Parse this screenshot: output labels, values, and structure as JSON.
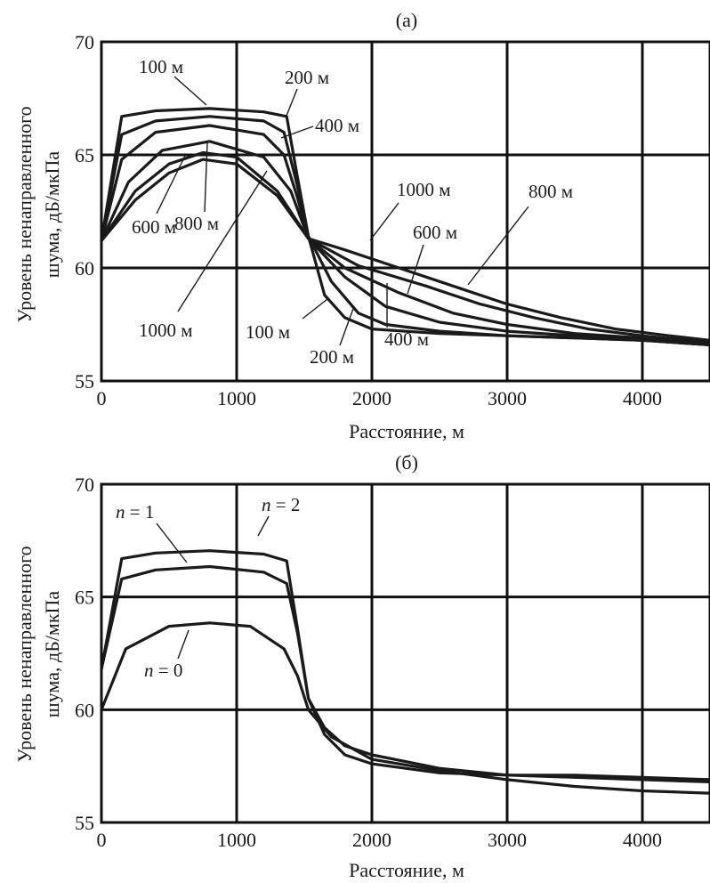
{
  "chart_data": [
    {
      "type": "line",
      "panel_label": "(а)",
      "xlabel": "Расстояние, м",
      "ylabel_lines": [
        "Уровень ненаправленного",
        "шума, дБ/мкПа"
      ],
      "xlim": [
        0,
        4500
      ],
      "ylim": [
        55,
        70
      ],
      "x_ticks": [
        "0",
        "1000",
        "2000",
        "3000",
        "4000"
      ],
      "y_ticks": [
        "55",
        "60",
        "65",
        "70"
      ],
      "grid": true,
      "series": [
        {
          "name": "100 м",
          "points": [
            [
              0,
              61.2
            ],
            [
              150,
              66.7
            ],
            [
              400,
              66.95
            ],
            [
              800,
              67.05
            ],
            [
              1200,
              66.9
            ],
            [
              1370,
              66.7
            ],
            [
              1450,
              64.0
            ],
            [
              1530,
              61.4
            ],
            [
              1650,
              58.8
            ],
            [
              1800,
              57.8
            ],
            [
              2000,
              57.3
            ],
            [
              2500,
              57.1
            ],
            [
              3000,
              57.0
            ],
            [
              3500,
              56.9
            ],
            [
              4000,
              56.8
            ],
            [
              4500,
              56.6
            ]
          ]
        },
        {
          "name": "200 м",
          "points": [
            [
              0,
              61.2
            ],
            [
              150,
              65.9
            ],
            [
              400,
              66.5
            ],
            [
              800,
              66.7
            ],
            [
              1200,
              66.5
            ],
            [
              1350,
              66.0
            ],
            [
              1450,
              63.6
            ],
            [
              1530,
              61.4
            ],
            [
              1700,
              59.4
            ],
            [
              1900,
              58.0
            ],
            [
              2100,
              57.5
            ],
            [
              2500,
              57.2
            ],
            [
              3000,
              57.0
            ],
            [
              3500,
              56.9
            ],
            [
              4000,
              56.8
            ],
            [
              4500,
              56.6
            ]
          ]
        },
        {
          "name": "400 м",
          "points": [
            [
              0,
              61.2
            ],
            [
              150,
              64.8
            ],
            [
              400,
              66.0
            ],
            [
              800,
              66.3
            ],
            [
              1200,
              65.9
            ],
            [
              1350,
              65.0
            ],
            [
              1450,
              63.1
            ],
            [
              1530,
              61.3
            ],
            [
              1800,
              59.6
            ],
            [
              2100,
              58.3
            ],
            [
              2500,
              57.6
            ],
            [
              3000,
              57.2
            ],
            [
              3500,
              57.0
            ],
            [
              4000,
              56.8
            ],
            [
              4500,
              56.6
            ]
          ]
        },
        {
          "name": "600 м",
          "points": [
            [
              0,
              61.2
            ],
            [
              200,
              63.8
            ],
            [
              450,
              65.2
            ],
            [
              800,
              65.6
            ],
            [
              1200,
              64.9
            ],
            [
              1400,
              63.4
            ],
            [
              1530,
              61.3
            ],
            [
              1800,
              60.0
            ],
            [
              2200,
              58.9
            ],
            [
              2600,
              58.0
            ],
            [
              3000,
              57.5
            ],
            [
              3500,
              57.1
            ],
            [
              4000,
              56.9
            ],
            [
              4500,
              56.6
            ]
          ]
        },
        {
          "name": "800 м",
          "points": [
            [
              0,
              61.2
            ],
            [
              250,
              63.4
            ],
            [
              500,
              64.6
            ],
            [
              750,
              65.1
            ],
            [
              1000,
              64.9
            ],
            [
              1300,
              63.4
            ],
            [
              1530,
              61.3
            ],
            [
              1900,
              60.1
            ],
            [
              2400,
              59.2
            ],
            [
              2800,
              58.4
            ],
            [
              3200,
              57.8
            ],
            [
              3600,
              57.3
            ],
            [
              4000,
              57.0
            ],
            [
              4500,
              56.7
            ]
          ]
        },
        {
          "name": "1000 м",
          "points": [
            [
              0,
              61.2
            ],
            [
              250,
              63.0
            ],
            [
              500,
              64.2
            ],
            [
              750,
              64.8
            ],
            [
              1000,
              64.6
            ],
            [
              1300,
              63.2
            ],
            [
              1530,
              61.3
            ],
            [
              1800,
              60.8
            ],
            [
              2200,
              60.0
            ],
            [
              2600,
              59.2
            ],
            [
              3000,
              58.4
            ],
            [
              3400,
              57.8
            ],
            [
              3800,
              57.3
            ],
            [
              4200,
              57.0
            ],
            [
              4500,
              56.8
            ]
          ]
        }
      ],
      "annotations": [
        {
          "text": "100 м"
        },
        {
          "text": "200 м"
        },
        {
          "text": "400 м"
        },
        {
          "text": "600 м"
        },
        {
          "text": "800 м"
        },
        {
          "text": "1000 м"
        },
        {
          "text": "1000 м"
        },
        {
          "text": "800 м"
        },
        {
          "text": "600 м"
        },
        {
          "text": "100 м"
        },
        {
          "text": "200 м"
        },
        {
          "text": "400 м"
        }
      ]
    },
    {
      "type": "line",
      "panel_label": "(б)",
      "xlabel": "Расстояние, м",
      "ylabel_lines": [
        "Уровень ненаправленного",
        "шума, дБ/мкПа"
      ],
      "xlim": [
        0,
        4500
      ],
      "ylim": [
        55,
        70
      ],
      "x_ticks": [
        "0",
        "1000",
        "2000",
        "3000",
        "4000"
      ],
      "y_ticks": [
        "55",
        "60",
        "65",
        "70"
      ],
      "grid": true,
      "series": [
        {
          "name": "n = 2",
          "points": [
            [
              0,
              61.8
            ],
            [
              150,
              66.7
            ],
            [
              400,
              66.95
            ],
            [
              800,
              67.05
            ],
            [
              1200,
              66.9
            ],
            [
              1370,
              66.6
            ],
            [
              1450,
              63.6
            ],
            [
              1530,
              60.5
            ],
            [
              1650,
              58.9
            ],
            [
              1800,
              58.0
            ],
            [
              2000,
              57.6
            ],
            [
              2500,
              57.2
            ],
            [
              3000,
              57.1
            ],
            [
              3500,
              57.0
            ],
            [
              4000,
              56.9
            ],
            [
              4500,
              56.8
            ]
          ]
        },
        {
          "name": "n = 1",
          "points": [
            [
              0,
              61.8
            ],
            [
              150,
              65.8
            ],
            [
              400,
              66.2
            ],
            [
              800,
              66.35
            ],
            [
              1200,
              66.1
            ],
            [
              1370,
              65.6
            ],
            [
              1450,
              63.4
            ],
            [
              1530,
              60.5
            ],
            [
              1650,
              59.2
            ],
            [
              1800,
              58.4
            ],
            [
              2000,
              58.0
            ],
            [
              2500,
              57.4
            ],
            [
              3000,
              57.1
            ],
            [
              3500,
              57.1
            ],
            [
              4000,
              57.0
            ],
            [
              4500,
              56.9
            ]
          ]
        },
        {
          "name": "n = 0",
          "points": [
            [
              0,
              60.0
            ],
            [
              180,
              62.7
            ],
            [
              500,
              63.7
            ],
            [
              800,
              63.85
            ],
            [
              1100,
              63.7
            ],
            [
              1350,
              62.7
            ],
            [
              1450,
              61.5
            ],
            [
              1530,
              60.0
            ],
            [
              1700,
              58.8
            ],
            [
              2000,
              57.8
            ],
            [
              2500,
              57.3
            ],
            [
              3000,
              56.9
            ],
            [
              3500,
              56.6
            ],
            [
              4000,
              56.4
            ],
            [
              4500,
              56.3
            ]
          ]
        }
      ],
      "annotations": [
        {
          "pre": "",
          "it": "n",
          "post": " = 1"
        },
        {
          "pre": "",
          "it": "n",
          "post": " = 2"
        },
        {
          "pre": "",
          "it": "n",
          "post": " = 0"
        }
      ]
    }
  ]
}
